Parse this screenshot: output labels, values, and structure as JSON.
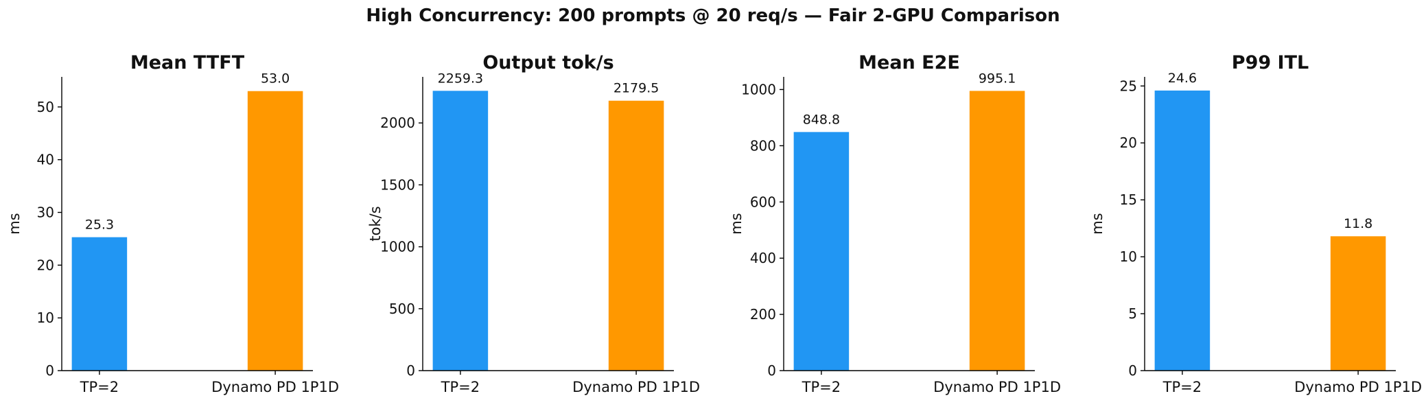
{
  "figure": {
    "suptitle": "High Concurrency: 200 prompts @ 20 req/s — Fair 2-GPU Comparison"
  },
  "chart_data": [
    {
      "type": "bar",
      "title": "Mean TTFT",
      "xlabel": "",
      "ylabel": "ms",
      "categories": [
        "TP=2",
        "Dynamo PD 1P1D"
      ],
      "values": [
        25.3,
        53.0
      ],
      "value_labels": [
        "25.3",
        "53.0"
      ],
      "colors": [
        "#2196F3",
        "#FF9800"
      ],
      "ylim": [
        0,
        55.7
      ],
      "yticks": [
        0,
        10,
        20,
        30,
        40,
        50
      ],
      "grid": false
    },
    {
      "type": "bar",
      "title": "Output tok/s",
      "xlabel": "",
      "ylabel": "tok/s",
      "categories": [
        "TP=2",
        "Dynamo PD 1P1D"
      ],
      "values": [
        2259.3,
        2179.5
      ],
      "value_labels": [
        "2259.3",
        "2179.5"
      ],
      "colors": [
        "#2196F3",
        "#FF9800"
      ],
      "ylim": [
        0,
        2372
      ],
      "yticks": [
        0,
        500,
        1000,
        1500,
        2000
      ],
      "grid": false
    },
    {
      "type": "bar",
      "title": "Mean E2E",
      "xlabel": "",
      "ylabel": "ms",
      "categories": [
        "TP=2",
        "Dynamo PD 1P1D"
      ],
      "values": [
        848.8,
        995.1
      ],
      "value_labels": [
        "848.8",
        "995.1"
      ],
      "colors": [
        "#2196F3",
        "#FF9800"
      ],
      "ylim": [
        0,
        1045
      ],
      "yticks": [
        0,
        200,
        400,
        600,
        800,
        1000
      ],
      "grid": false
    },
    {
      "type": "bar",
      "title": "P99 ITL",
      "xlabel": "",
      "ylabel": "ms",
      "categories": [
        "TP=2",
        "Dynamo PD 1P1D"
      ],
      "values": [
        24.6,
        11.8
      ],
      "value_labels": [
        "24.6",
        "11.8"
      ],
      "colors": [
        "#2196F3",
        "#FF9800"
      ],
      "ylim": [
        0,
        25.8
      ],
      "yticks": [
        0,
        5,
        10,
        15,
        20,
        25
      ],
      "grid": false
    }
  ]
}
